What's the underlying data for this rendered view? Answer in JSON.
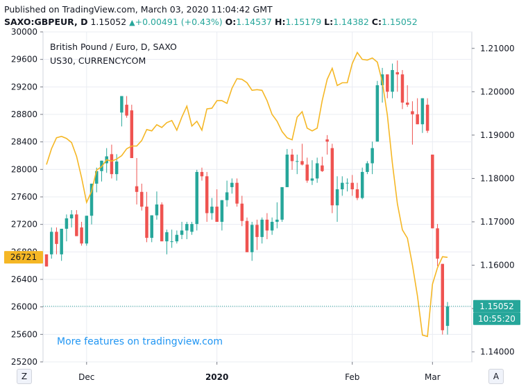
{
  "header": {
    "published": "Published on TradingView.com, March 03, 2020 11:04:42 GMT",
    "symbol_line": "SAXO:GBPEUR, D",
    "price": "1.15052",
    "change": "+0.00491 (+0.43%)",
    "o_label": "O:",
    "o_value": "1.14537",
    "h_label": "H:",
    "h_value": "1.15179",
    "l_label": "L:",
    "l_value": "1.14382",
    "c_label": "C:",
    "c_value": "1.15052"
  },
  "legend": {
    "main": "British Pound / Euro, D, SAXO",
    "overlay": "US30, CURRENCYCOM"
  },
  "watermark": "More features on tradingview.com",
  "buttons": {
    "z": "Z",
    "a": "A"
  },
  "colors": {
    "up": "#26a69a",
    "down": "#ef5350",
    "overlay": "#f5b725",
    "grid": "#e9ecf2",
    "text": "#131722"
  },
  "chart_data": {
    "type": "candlestick",
    "x_ticks": [
      "Dec",
      "2020",
      "Feb",
      "Mar"
    ],
    "left_axis": {
      "ticks": [
        25200,
        25600,
        26000,
        26400,
        26800,
        27200,
        27600,
        28000,
        28400,
        28800,
        29200,
        29600,
        30000
      ],
      "range": [
        25200,
        30000
      ],
      "last_label": "26721"
    },
    "right_axis": {
      "ticks": [
        1.14,
        1.15,
        1.16,
        1.17,
        1.18,
        1.19,
        1.2,
        1.21
      ],
      "tick_labels": [
        "1.14000",
        "1.15000",
        "1.16000",
        "1.17000",
        "1.18000",
        "1.19000",
        "1.20000",
        "1.21000"
      ],
      "range": [
        1.1377,
        1.2138
      ],
      "last_price": "1.15052",
      "countdown": "10:55:20"
    },
    "candles": [
      [
        1.1625,
        1.1625,
        1.1597,
        1.1597
      ],
      [
        1.1625,
        1.1687,
        1.1615,
        1.1677
      ],
      [
        1.1677,
        1.1687,
        1.1625,
        1.1649
      ],
      [
        1.1625,
        1.1684,
        1.161,
        1.1684
      ],
      [
        1.1684,
        1.1717,
        1.1655,
        1.1708
      ],
      [
        1.1708,
        1.1727,
        1.1687,
        1.1717
      ],
      [
        1.1717,
        1.1727,
        1.1667,
        1.1667
      ],
      [
        1.1687,
        1.17,
        1.1645,
        1.165
      ],
      [
        1.165,
        1.1714,
        1.1645,
        1.1714
      ],
      [
        1.1714,
        1.1788,
        1.1694,
        1.1788
      ],
      [
        1.1788,
        1.1825,
        1.1768,
        1.1817
      ],
      [
        1.1817,
        1.1841,
        1.1793,
        1.1841
      ],
      [
        1.1835,
        1.187,
        1.1813,
        1.1851
      ],
      [
        1.1856,
        1.1878,
        1.18,
        1.181
      ],
      [
        1.181,
        1.1856,
        1.1795,
        1.1839
      ],
      [
        1.1952,
        1.199,
        1.192,
        1.199
      ],
      [
        1.197,
        1.199,
        1.194,
        1.1945
      ],
      [
        1.1957,
        1.197,
        1.1847,
        1.1847
      ],
      [
        1.1782,
        1.1847,
        1.174,
        1.1769
      ],
      [
        1.1769,
        1.1788,
        1.1726,
        1.1735
      ],
      [
        1.1735,
        1.1769,
        1.1653,
        1.1663
      ],
      [
        1.1663,
        1.1715,
        1.1653,
        1.1715
      ],
      [
        1.1715,
        1.177,
        1.1705,
        1.174
      ],
      [
        1.174,
        1.1745,
        1.1655,
        1.1655
      ],
      [
        1.1655,
        1.1682,
        1.1625,
        1.1676
      ],
      [
        1.1655,
        1.1682,
        1.164,
        1.1655
      ],
      [
        1.1655,
        1.168,
        1.165,
        1.167
      ],
      [
        1.167,
        1.17,
        1.166,
        1.168
      ],
      [
        1.168,
        1.17,
        1.166,
        1.1695
      ],
      [
        1.1677,
        1.17,
        1.167,
        1.1695
      ],
      [
        1.1695,
        1.182,
        1.168,
        1.1815
      ],
      [
        1.1815,
        1.1825,
        1.1795,
        1.1805
      ],
      [
        1.1805,
        1.1815,
        1.17,
        1.172
      ],
      [
        1.172,
        1.1755,
        1.1705,
        1.1735
      ],
      [
        1.1735,
        1.1775,
        1.17,
        1.17
      ],
      [
        1.17,
        1.175,
        1.168,
        1.175
      ],
      [
        1.175,
        1.1795,
        1.1735,
        1.1768
      ],
      [
        1.178,
        1.18,
        1.1765,
        1.179
      ],
      [
        1.179,
        1.18,
        1.1735,
        1.1742
      ],
      [
        1.1742,
        1.176,
        1.169,
        1.1702
      ],
      [
        1.1702,
        1.171,
        1.163,
        1.163
      ],
      [
        1.163,
        1.17,
        1.161,
        1.1693
      ],
      [
        1.1693,
        1.1705,
        1.1635,
        1.1665
      ],
      [
        1.1665,
        1.171,
        1.165,
        1.1705
      ],
      [
        1.1705,
        1.172,
        1.166,
        1.168
      ],
      [
        1.168,
        1.171,
        1.167,
        1.17
      ],
      [
        1.17,
        1.1745,
        1.1685,
        1.1705
      ],
      [
        1.1705,
        1.178,
        1.17,
        1.178
      ],
      [
        1.178,
        1.1868,
        1.178,
        1.1855
      ],
      [
        1.1855,
        1.1868,
        1.182,
        1.184
      ],
      [
        1.184,
        1.1855,
        1.181,
        1.184
      ],
      [
        1.184,
        1.188,
        1.183,
        1.1832
      ],
      [
        1.1832,
        1.1848,
        1.179,
        1.1795
      ],
      [
        1.1795,
        1.1842,
        1.1785,
        1.18
      ],
      [
        1.18,
        1.1848,
        1.179,
        1.1835
      ],
      [
        1.183,
        1.185,
        1.1815,
        1.1817
      ],
      [
        1.189,
        1.19,
        1.1855,
        1.1885
      ],
      [
        1.187,
        1.188,
        1.172,
        1.1738
      ],
      [
        1.1738,
        1.1805,
        1.17,
        1.1775
      ],
      [
        1.1775,
        1.1805,
        1.176,
        1.179
      ],
      [
        1.179,
        1.18,
        1.177,
        1.179
      ],
      [
        1.179,
        1.1808,
        1.176,
        1.1775
      ],
      [
        1.1775,
        1.179,
        1.175,
        1.1755
      ],
      [
        1.1755,
        1.1825,
        1.1752,
        1.1815
      ],
      [
        1.1815,
        1.184,
        1.181,
        1.1835
      ],
      [
        1.1835,
        1.1885,
        1.181,
        1.187
      ],
      [
        1.1885,
        1.2025,
        1.1885,
        1.2015
      ],
      [
        1.2015,
        1.2055,
        1.1975,
        1.204
      ],
      [
        1.204,
        1.204,
        1.1985,
        1.2
      ],
      [
        1.2,
        1.2065,
        1.1985,
        1.205
      ],
      [
        1.2045,
        1.2072,
        1.2,
        1.204
      ],
      [
        1.204,
        1.205,
        1.196,
        1.1975
      ],
      [
        1.1975,
        1.2015,
        1.1965,
        1.197
      ],
      [
        1.1955,
        1.1978,
        1.1878,
        1.1948
      ],
      [
        1.1948,
        1.1985,
        1.1925,
        1.1925
      ],
      [
        1.1925,
        1.1985,
        1.1905,
        1.1985
      ],
      [
        1.197,
        1.1985,
        1.1905,
        1.191
      ],
      [
        1.1855,
        1.1855,
        1.1685,
        1.1685
      ],
      [
        1.1685,
        1.1695,
        1.1598,
        1.1615
      ],
      [
        1.1603,
        1.1603,
        1.144,
        1.145
      ],
      [
        1.146,
        1.1515,
        1.144,
        1.1505
      ]
    ],
    "overlay_line": {
      "y_axis": "left",
      "x": [
        0,
        1,
        2,
        3,
        4,
        5,
        6,
        7,
        8,
        9,
        10,
        11,
        12,
        13,
        14,
        15,
        16,
        17,
        18,
        19,
        20,
        21,
        22,
        23,
        24,
        25,
        26,
        27,
        28,
        29,
        30,
        31,
        32,
        33,
        34,
        35,
        36,
        37,
        38,
        39,
        40,
        41,
        42,
        43,
        44,
        45,
        46,
        47,
        48,
        49,
        50,
        51,
        52,
        53,
        54,
        55,
        56,
        57,
        58,
        59,
        60,
        61,
        62,
        63,
        64,
        65,
        66,
        67,
        68,
        69,
        70,
        71,
        72,
        73,
        74,
        75,
        76,
        77,
        78,
        79,
        80
      ],
      "values": [
        28070,
        28300,
        28460,
        28480,
        28450,
        28390,
        28190,
        27880,
        27520,
        27680,
        27990,
        28040,
        28140,
        28120,
        28150,
        28200,
        28300,
        28340,
        28340,
        28420,
        28580,
        28560,
        28650,
        28610,
        28680,
        28710,
        28570,
        28760,
        28920,
        28630,
        28700,
        28570,
        28880,
        28890,
        29000,
        29000,
        28960,
        29180,
        29320,
        29310,
        29260,
        29150,
        29160,
        29150,
        29000,
        28800,
        28700,
        28550,
        28460,
        28430,
        28760,
        28840,
        28600,
        28560,
        28600,
        29000,
        29310,
        29470,
        29220,
        29260,
        29260,
        29540,
        29700,
        29600,
        29590,
        29620,
        29560,
        29270,
        28790,
        28090,
        27500,
        27120,
        27000,
        26610,
        26160,
        25590,
        25570,
        26330,
        26570,
        26730,
        26721
      ],
      "x_pos": [
        0,
        1,
        2,
        3,
        4,
        5,
        6,
        7,
        8,
        9,
        10,
        11,
        12,
        13,
        14,
        15,
        16,
        17,
        18,
        19,
        20,
        21,
        22,
        23,
        24,
        25,
        26,
        27,
        28,
        29,
        30,
        31,
        32,
        33,
        34,
        35,
        36,
        37,
        38,
        39,
        40,
        41,
        42,
        43,
        44,
        45,
        46,
        47,
        48,
        49,
        50,
        51,
        52,
        53,
        54,
        55,
        56,
        57,
        58,
        59,
        60,
        61,
        62,
        63,
        64,
        65,
        66,
        67,
        68,
        69,
        70,
        71,
        72,
        73,
        74,
        75,
        76,
        77,
        78,
        79,
        80
      ]
    }
  }
}
